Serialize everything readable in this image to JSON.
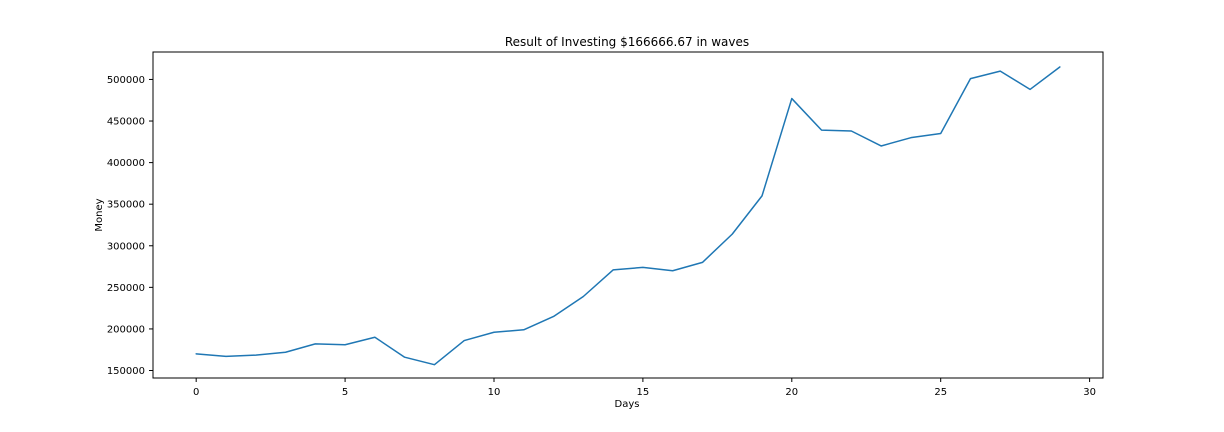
{
  "chart_data": {
    "type": "line",
    "title": "Result of Investing $166666.67 in waves",
    "xlabel": "Days",
    "ylabel": "Money",
    "xlim": [
      -1.45,
      30.45
    ],
    "ylim": [
      141000,
      533000
    ],
    "xticks": [
      0,
      5,
      10,
      15,
      20,
      25,
      30
    ],
    "yticks": [
      150000,
      200000,
      250000,
      300000,
      350000,
      400000,
      450000,
      500000
    ],
    "xtick_labels": [
      "0",
      "5",
      "10",
      "15",
      "20",
      "25",
      "30"
    ],
    "ytick_labels": [
      "150000",
      "200000",
      "250000",
      "300000",
      "350000",
      "400000",
      "450000",
      "500000"
    ],
    "grid": false,
    "color": "#1f77b4",
    "series": [
      {
        "x": [
          0,
          1,
          2,
          3,
          4,
          5,
          6,
          7,
          8,
          9,
          10,
          11,
          12,
          13,
          14,
          15,
          16,
          17,
          18,
          19,
          20,
          21,
          22,
          23,
          24,
          25,
          26,
          27,
          28,
          29
        ],
        "values": [
          170000,
          167000,
          168500,
          172000,
          182000,
          181000,
          190000,
          166000,
          157000,
          186000,
          196000,
          199000,
          215000,
          239000,
          271000,
          274000,
          270000,
          280000,
          314000,
          360000,
          477000,
          439000,
          438000,
          420000,
          430000,
          435000,
          501000,
          510000,
          488000,
          515000
        ]
      }
    ]
  }
}
